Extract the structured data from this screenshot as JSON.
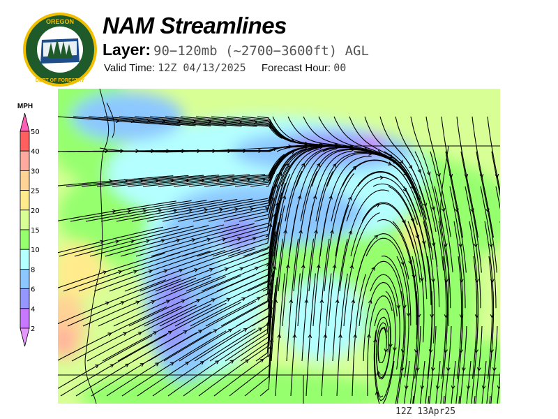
{
  "logo": {
    "text_top": "OREGON",
    "text_bottom": "DEPARTMENT OF FORESTRY"
  },
  "header": {
    "title": "NAM Streamlines",
    "layer_label": "Layer:",
    "layer_value": "90−120mb (~2700−3600ft) AGL",
    "valid_label": "Valid Time:",
    "valid_value": "12Z 04/13/2025",
    "forecast_label": "Forecast Hour:",
    "forecast_value": "00"
  },
  "colorbar": {
    "unit": "MPH",
    "levels": [
      "50",
      "40",
      "30",
      "25",
      "20",
      "15",
      "10",
      "8",
      "6",
      "4",
      "2"
    ],
    "colors": [
      "#ff5f5f",
      "#ffaa9e",
      "#ffd296",
      "#ffeb8c",
      "#d8ff96",
      "#96ff6e",
      "#b4ffff",
      "#8cc8ff",
      "#9696ff",
      "#c878ff"
    ],
    "over_color": "#ff5fb4",
    "under_color": "#e696ff"
  },
  "map": {
    "stamp": "12Z 13Apr25",
    "base_color": "#d8ff96",
    "line_color": "#000000"
  }
}
